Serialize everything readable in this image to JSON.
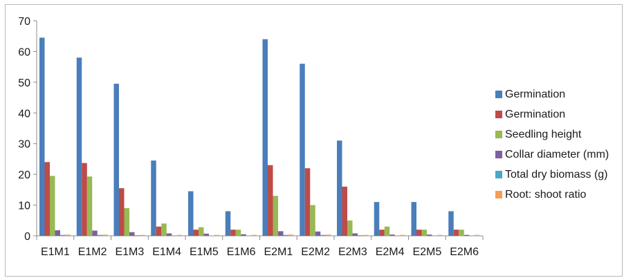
{
  "chart_data": {
    "type": "bar",
    "title": "",
    "xlabel": "",
    "ylabel": "",
    "ylim": [
      0,
      70
    ],
    "yticks": [
      0,
      10,
      20,
      30,
      40,
      50,
      60,
      70
    ],
    "grid": false,
    "legend_position": "right",
    "categories": [
      "E1M1",
      "E1M2",
      "E1M3",
      "E1M4",
      "E1M5",
      "E1M6",
      "E2M1",
      "E2M2",
      "E2M3",
      "E2M4",
      "E2M5",
      "E2M6"
    ],
    "series": [
      {
        "name": "Germination",
        "color": "#4a7ebb",
        "values": [
          64.5,
          58.0,
          49.5,
          24.5,
          14.5,
          8.0,
          64.0,
          56.0,
          31.0,
          11.0,
          11.0,
          8.0
        ]
      },
      {
        "name": "Germination",
        "color": "#be4b48",
        "values": [
          24.0,
          23.7,
          15.5,
          3.0,
          2.0,
          2.0,
          23.0,
          22.0,
          16.0,
          2.0,
          2.0,
          2.0
        ]
      },
      {
        "name": "Seedling height",
        "color": "#98b954",
        "values": [
          19.5,
          19.3,
          9.0,
          4.0,
          2.8,
          2.0,
          13.0,
          10.0,
          5.0,
          3.0,
          2.0,
          2.0
        ]
      },
      {
        "name": "Collar diameter (mm)",
        "color": "#7d60a0",
        "values": [
          1.8,
          1.7,
          1.2,
          0.8,
          0.7,
          0.5,
          1.5,
          1.4,
          0.8,
          0.4,
          0.4,
          0.3
        ]
      },
      {
        "name": "Total dry biomass (g)",
        "color": "#46aac5",
        "values": [
          0.3,
          0.3,
          0.2,
          0.1,
          0.1,
          0.1,
          0.3,
          0.3,
          0.2,
          0.1,
          0.1,
          0.1
        ]
      },
      {
        "name": "Root: shoot ratio",
        "color": "#f59d56",
        "values": [
          0.4,
          0.4,
          0.3,
          0.3,
          0.3,
          0.3,
          0.4,
          0.4,
          0.3,
          0.3,
          0.3,
          0.3
        ]
      }
    ]
  }
}
